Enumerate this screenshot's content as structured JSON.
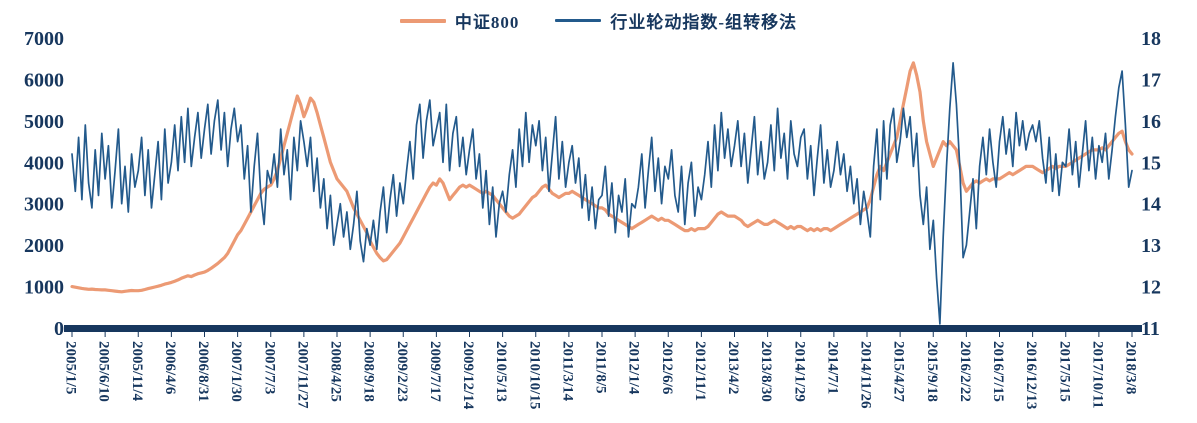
{
  "chart_data": {
    "type": "line",
    "title": "",
    "legend": [
      {
        "label": "中证800",
        "axis": "left"
      },
      {
        "label": "行业轮动指数-组转移法",
        "axis": "right"
      }
    ],
    "colors": {
      "csi800": "#EC9A74",
      "rotation_index": "#235A8C",
      "axis_text": "#17375E",
      "baseline": "#17375E"
    },
    "left_axis": {
      "min": 0,
      "max": 7000,
      "ticks": [
        0,
        1000,
        2000,
        3000,
        4000,
        5000,
        6000,
        7000
      ]
    },
    "right_axis": {
      "min": 11,
      "max": 18,
      "ticks": [
        11,
        12,
        13,
        14,
        15,
        16,
        17,
        18
      ]
    },
    "x_tick_labels": [
      "2005/1/5",
      "2005/6/10",
      "2005/11/4",
      "2006/4/6",
      "2006/8/31",
      "2007/1/30",
      "2007/7/3",
      "2007/11/27",
      "2008/4/25",
      "2008/9/18",
      "2009/2/23",
      "2009/7/17",
      "2009/12/14",
      "2010/5/13",
      "2010/10/15",
      "2011/3/14",
      "2011/8/5",
      "2012/1/4",
      "2012/6/6",
      "2012/11/1",
      "2013/4/2",
      "2013/8/30",
      "2014/1/29",
      "2014/7/1",
      "2014/11/26",
      "2015/4/27",
      "2015/9/18",
      "2016/2/22",
      "2016/7/15",
      "2016/12/13",
      "2017/5/15",
      "2017/10/11",
      "2018/3/8"
    ],
    "points_per_tick": 10,
    "series": [
      {
        "name": "中证800",
        "axis": "left",
        "color_key": "csi800",
        "values": [
          1000,
          985,
          970,
          955,
          945,
          935,
          940,
          930,
          925,
          920,
          920,
          910,
          900,
          890,
          880,
          875,
          885,
          895,
          905,
          900,
          900,
          910,
          930,
          950,
          970,
          990,
          1010,
          1030,
          1060,
          1080,
          1100,
          1130,
          1160,
          1200,
          1230,
          1260,
          1240,
          1280,
          1310,
          1330,
          1350,
          1390,
          1440,
          1500,
          1560,
          1630,
          1700,
          1800,
          1950,
          2100,
          2250,
          2350,
          2500,
          2650,
          2800,
          2950,
          3100,
          3250,
          3350,
          3400,
          3450,
          3600,
          3800,
          4100,
          4400,
          4700,
          5000,
          5300,
          5600,
          5400,
          5100,
          5300,
          5550,
          5450,
          5200,
          4900,
          4600,
          4300,
          4000,
          3800,
          3600,
          3500,
          3400,
          3300,
          3100,
          2900,
          2750,
          2600,
          2450,
          2300,
          2100,
          1950,
          1800,
          1700,
          1620,
          1650,
          1750,
          1850,
          1950,
          2050,
          2200,
          2350,
          2500,
          2650,
          2800,
          2950,
          3100,
          3250,
          3400,
          3500,
          3450,
          3600,
          3500,
          3300,
          3100,
          3200,
          3300,
          3400,
          3450,
          3400,
          3450,
          3400,
          3350,
          3300,
          3250,
          3300,
          3250,
          3200,
          3100,
          3000,
          2900,
          2800,
          2700,
          2650,
          2700,
          2750,
          2850,
          2950,
          3050,
          3150,
          3200,
          3300,
          3400,
          3450,
          3350,
          3250,
          3200,
          3150,
          3200,
          3250,
          3250,
          3300,
          3250,
          3200,
          3150,
          3100,
          3050,
          3000,
          2950,
          2900,
          2900,
          2850,
          2750,
          2700,
          2650,
          2600,
          2550,
          2500,
          2450,
          2400,
          2450,
          2500,
          2550,
          2600,
          2650,
          2700,
          2650,
          2600,
          2650,
          2600,
          2600,
          2550,
          2500,
          2450,
          2400,
          2350,
          2350,
          2400,
          2350,
          2400,
          2400,
          2400,
          2450,
          2550,
          2650,
          2750,
          2800,
          2750,
          2700,
          2700,
          2700,
          2650,
          2600,
          2500,
          2450,
          2500,
          2550,
          2600,
          2550,
          2500,
          2500,
          2550,
          2600,
          2550,
          2500,
          2450,
          2400,
          2450,
          2400,
          2450,
          2450,
          2400,
          2350,
          2400,
          2350,
          2400,
          2350,
          2400,
          2400,
          2350,
          2400,
          2450,
          2500,
          2550,
          2600,
          2650,
          2700,
          2750,
          2800,
          2850,
          2900,
          3100,
          3400,
          3700,
          3900,
          3800,
          4000,
          4200,
          4400,
          4600,
          5000,
          5400,
          5800,
          6200,
          6400,
          6100,
          5700,
          5000,
          4500,
          4200,
          3900,
          4100,
          4300,
          4500,
          4400,
          4500,
          4400,
          4300,
          3900,
          3500,
          3300,
          3400,
          3500,
          3550,
          3500,
          3550,
          3600,
          3550,
          3600,
          3600,
          3600,
          3650,
          3700,
          3750,
          3700,
          3750,
          3800,
          3850,
          3900,
          3900,
          3900,
          3850,
          3800,
          3750,
          3800,
          3850,
          3900,
          3850,
          3900,
          3900,
          3900,
          3950,
          4000,
          4050,
          4100,
          4150,
          4200,
          4250,
          4300,
          4300,
          4300,
          4350,
          4300,
          4400,
          4500,
          4600,
          4700,
          4750,
          4500,
          4300,
          4200
        ]
      },
      {
        "name": "行业轮动指数-组转移法",
        "axis": "right",
        "color_key": "rotation_index",
        "values": [
          15.2,
          14.3,
          15.6,
          14.1,
          15.9,
          14.5,
          13.9,
          15.3,
          14.2,
          15.7,
          14.6,
          15.4,
          13.9,
          14.8,
          15.8,
          14.0,
          14.9,
          13.8,
          15.2,
          14.4,
          14.8,
          15.6,
          14.2,
          15.3,
          13.9,
          14.7,
          15.5,
          14.1,
          15.8,
          14.5,
          15.0,
          15.9,
          14.8,
          16.1,
          15.0,
          16.3,
          14.9,
          15.6,
          16.2,
          15.1,
          15.8,
          16.4,
          15.2,
          16.0,
          16.5,
          15.3,
          16.2,
          14.9,
          15.8,
          16.3,
          15.5,
          15.9,
          14.6,
          15.4,
          13.8,
          14.9,
          15.7,
          14.2,
          13.5,
          14.8,
          14.5,
          15.2,
          14.4,
          15.8,
          14.7,
          15.3,
          14.1,
          15.6,
          14.8,
          16.0,
          15.5,
          14.9,
          15.6,
          14.3,
          15.1,
          13.9,
          14.6,
          13.4,
          14.2,
          13.0,
          13.5,
          14.0,
          13.2,
          13.8,
          12.9,
          13.5,
          14.3,
          13.1,
          12.6,
          13.4,
          13.0,
          13.6,
          12.9,
          13.8,
          14.4,
          13.3,
          14.1,
          14.7,
          13.7,
          14.5,
          14.0,
          14.8,
          15.5,
          14.6,
          15.9,
          16.4,
          15.1,
          16.0,
          16.5,
          15.4,
          15.8,
          16.2,
          15.0,
          16.4,
          14.8,
          15.7,
          16.1,
          14.9,
          15.6,
          14.7,
          15.3,
          15.8,
          14.6,
          15.2,
          13.9,
          14.8,
          13.5,
          14.4,
          13.2,
          14.0,
          14.3,
          13.8,
          14.7,
          15.3,
          14.4,
          15.8,
          14.9,
          16.2,
          15.0,
          15.9,
          15.4,
          16.0,
          14.8,
          15.6,
          14.3,
          15.2,
          16.1,
          14.6,
          15.5,
          14.4,
          15.0,
          15.4,
          14.5,
          15.1,
          13.9,
          14.7,
          13.6,
          14.4,
          13.4,
          14.1,
          14.2,
          14.9,
          13.7,
          14.5,
          13.3,
          14.2,
          13.8,
          14.6,
          13.2,
          14.0,
          13.9,
          14.4,
          15.2,
          13.9,
          14.8,
          15.6,
          14.3,
          15.1,
          14.0,
          14.9,
          14.6,
          15.3,
          14.2,
          13.8,
          14.9,
          13.5,
          14.5,
          15.0,
          13.7,
          14.4,
          14.1,
          14.7,
          15.5,
          14.4,
          15.9,
          14.8,
          16.2,
          15.1,
          15.8,
          14.9,
          15.4,
          16.0,
          14.9,
          15.7,
          14.5,
          15.3,
          16.1,
          14.7,
          15.5,
          14.6,
          15.0,
          15.9,
          14.8,
          16.3,
          15.1,
          15.7,
          14.6,
          16.0,
          15.2,
          14.9,
          15.6,
          15.8,
          14.6,
          15.4,
          14.2,
          15.1,
          15.9,
          14.5,
          15.3,
          14.4,
          14.8,
          15.5,
          14.7,
          15.2,
          14.3,
          14.9,
          14.0,
          14.6,
          13.5,
          14.3,
          13.8,
          13.2,
          14.9,
          15.8,
          14.1,
          16.0,
          14.6,
          15.9,
          16.3,
          15.0,
          15.5,
          16.3,
          15.6,
          16.1,
          14.9,
          15.7,
          14.2,
          13.5,
          14.4,
          12.9,
          13.6,
          12.2,
          11.1,
          13.2,
          14.9,
          16.3,
          17.4,
          16.4,
          14.9,
          12.7,
          13.0,
          13.8,
          14.6,
          13.4,
          14.9,
          15.6,
          14.7,
          15.8,
          15.0,
          14.4,
          15.5,
          16.1,
          15.2,
          15.8,
          14.9,
          16.2,
          15.4,
          16.0,
          15.3,
          15.7,
          15.9,
          15.5,
          16.0,
          15.1,
          14.5,
          15.6,
          14.3,
          15.2,
          14.2,
          15.0,
          14.9,
          15.8,
          14.7,
          15.5,
          14.4,
          15.2,
          16.0,
          14.8,
          15.6,
          14.6,
          15.4,
          15.0,
          15.7,
          14.6,
          15.3,
          16.1,
          16.8,
          17.2,
          15.9,
          14.4,
          14.8
        ]
      }
    ]
  }
}
